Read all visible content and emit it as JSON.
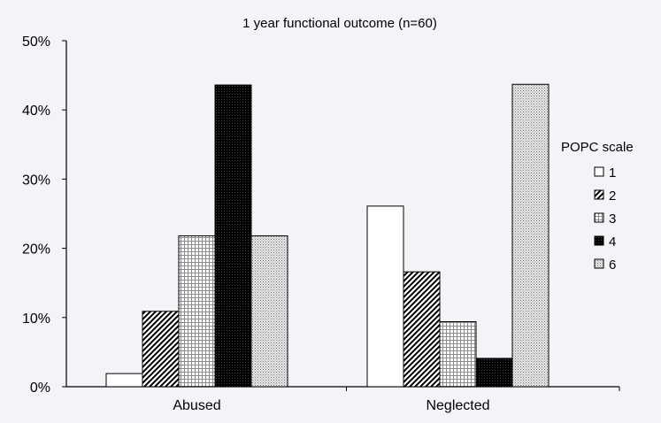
{
  "chart_data": {
    "type": "bar",
    "title": "1 year functional outcome (n=60)",
    "xlabel": "",
    "ylabel": "",
    "categories": [
      "Abused",
      "Neglected"
    ],
    "yticks": [
      "0%",
      "10%",
      "20%",
      "30%",
      "40%",
      "50%"
    ],
    "ylim": [
      0,
      50
    ],
    "grid": false,
    "legend": {
      "title": "POPC scale",
      "placement": "right"
    },
    "series": [
      {
        "name": "1",
        "pattern": "white",
        "values": [
          1.9,
          26.1
        ]
      },
      {
        "name": "2",
        "pattern": "diagonal",
        "values": [
          10.9,
          16.6
        ]
      },
      {
        "name": "3",
        "pattern": "grid",
        "values": [
          21.8,
          9.4
        ]
      },
      {
        "name": "4",
        "pattern": "black",
        "values": [
          43.6,
          4.1
        ]
      },
      {
        "name": "6",
        "pattern": "dots",
        "values": [
          21.8,
          43.7
        ]
      }
    ]
  }
}
